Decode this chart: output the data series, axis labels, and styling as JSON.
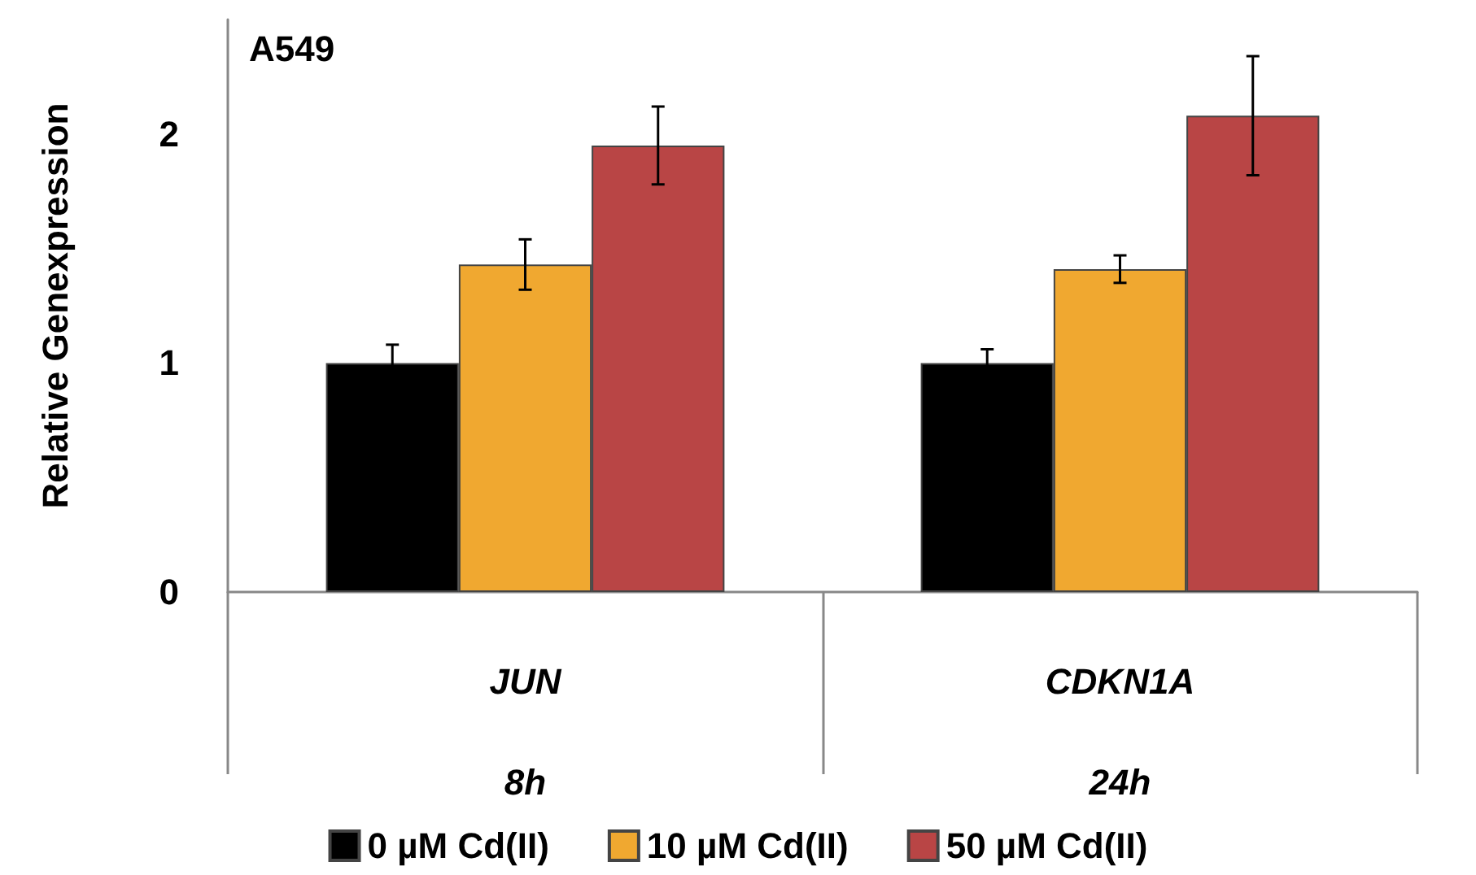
{
  "chart_data": {
    "type": "bar",
    "title": "A549",
    "ylabel": "Relative Genexpression",
    "categories": [
      "JUN",
      "CDKN1A"
    ],
    "annotations": [
      "8h",
      "24h"
    ],
    "series": [
      {
        "name": "0 µM Cd(II)",
        "color": "#000000",
        "values": [
          1.0,
          1.0
        ],
        "errors": [
          0.08,
          0.06
        ]
      },
      {
        "name": "10 µM Cd(II)",
        "color": "#f0a830",
        "values": [
          1.43,
          1.41
        ],
        "errors": [
          0.11,
          0.06
        ]
      },
      {
        "name": "50 µM Cd(II)",
        "color": "#b94545",
        "values": [
          1.95,
          2.08
        ],
        "errors": [
          0.17,
          0.26
        ]
      }
    ],
    "ylim": [
      0,
      2.5
    ],
    "yticks": [
      0,
      1,
      2
    ],
    "grid": false,
    "legend": "bottom"
  }
}
